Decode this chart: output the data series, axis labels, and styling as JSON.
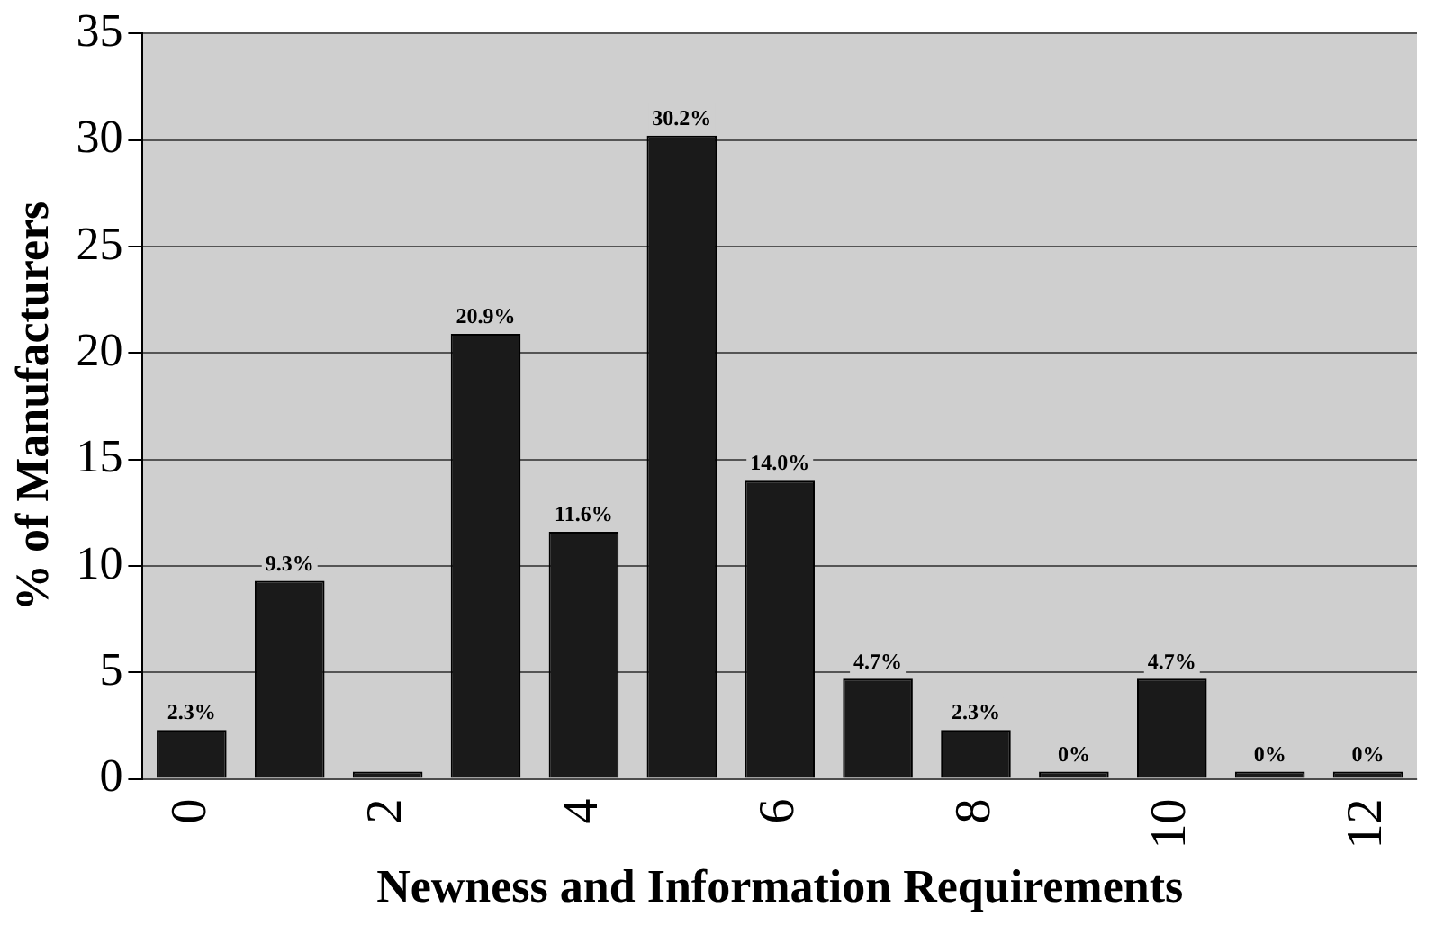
{
  "chart_data": {
    "type": "bar",
    "xlabel": "Newness and Information Requirements",
    "ylabel": "% of Manufacturers",
    "categories": [
      "0",
      null,
      "2",
      null,
      "4",
      null,
      "6",
      null,
      "8",
      null,
      "10",
      null,
      "12"
    ],
    "values": [
      2.3,
      9.3,
      0,
      20.9,
      11.6,
      30.2,
      14.0,
      4.7,
      2.3,
      0,
      4.7,
      0,
      0
    ],
    "value_labels": [
      "2.3%",
      "9.3%",
      null,
      "20.9%",
      "11.6%",
      "30.2%",
      "14.0%",
      "4.7%",
      "2.3%",
      "0%",
      "4.7%",
      "0%",
      "0%"
    ],
    "color": "#1a1a1a",
    "ylim": [
      0,
      35
    ],
    "yticks": [
      0,
      5,
      10,
      15,
      20,
      25,
      30,
      35
    ],
    "grid": "y",
    "legend": false
  }
}
